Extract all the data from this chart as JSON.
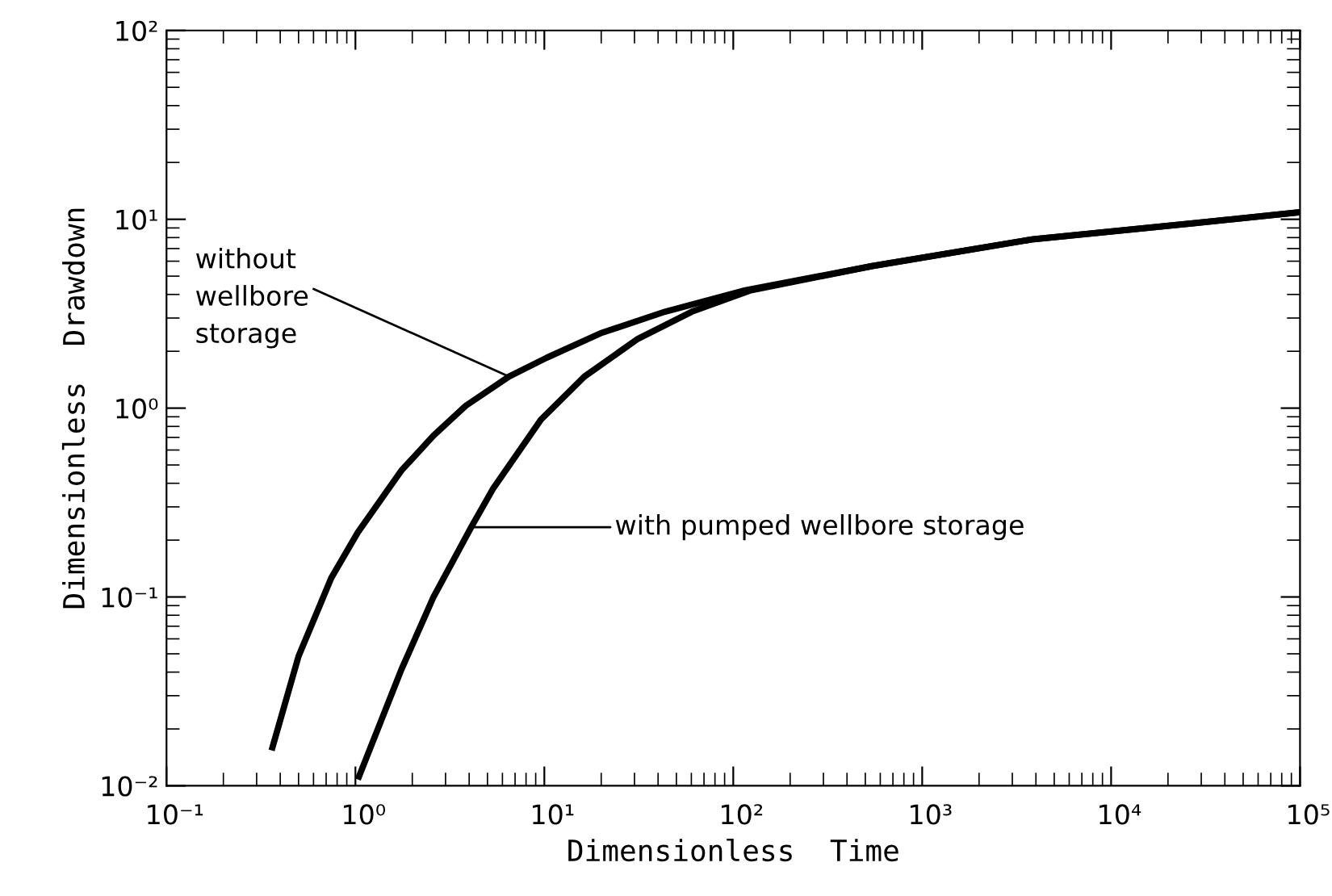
{
  "chart_data": {
    "type": "line",
    "xlabel": "Dimensionless  Time",
    "ylabel": "Dimensionless  Drawdown",
    "log": "xy",
    "grid": false,
    "marker": "none",
    "line_style": "solid",
    "xlim": [
      0.1,
      100000
    ],
    "ylim": [
      0.01,
      100
    ],
    "xticks": [
      {
        "value": 0.1,
        "label": "10⁻¹"
      },
      {
        "value": 1,
        "label": "10⁰"
      },
      {
        "value": 10,
        "label": "10¹"
      },
      {
        "value": 100,
        "label": "10²"
      },
      {
        "value": 1000,
        "label": "10³"
      },
      {
        "value": 10000,
        "label": "10⁴"
      },
      {
        "value": 100000,
        "label": "10⁵"
      }
    ],
    "yticks": [
      {
        "value": 0.01,
        "label": "10⁻²"
      },
      {
        "value": 0.1,
        "label": "10⁻¹"
      },
      {
        "value": 1,
        "label": "10⁰"
      },
      {
        "value": 10,
        "label": "10¹"
      },
      {
        "value": 100,
        "label": "10²"
      }
    ],
    "series": [
      {
        "color": "#000000",
        "x": [
          0.36,
          0.5,
          0.745,
          1.03,
          1.75,
          2.59,
          3.84,
          6.5,
          10.3,
          19.8,
          43.5,
          116,
          543,
          3890,
          27800,
          100000
        ],
        "values": [
          0.0154,
          0.0485,
          0.126,
          0.22,
          0.467,
          0.716,
          1.03,
          1.47,
          1.85,
          2.49,
          3.24,
          4.21,
          5.65,
          7.85,
          9.55,
          10.9
        ]
      },
      {
        "color": "#000000",
        "x": [
          1.03,
          1.75,
          2.59,
          4.1,
          5.33,
          9.6,
          16.3,
          31.3,
          60.3,
          124,
          543,
          3890,
          27800,
          100000
        ],
        "values": [
          0.0108,
          0.0412,
          0.1,
          0.234,
          0.372,
          0.87,
          1.47,
          2.33,
          3.24,
          4.21,
          5.65,
          7.85,
          9.55,
          10.9
        ]
      }
    ],
    "annotations": [
      {
        "text": "without\nwellbore\nstorage",
        "x": 6.5,
        "y": 1.47
      },
      {
        "text": "with pumped wellbore storage",
        "x": 4.1,
        "y": 0.234
      }
    ]
  }
}
